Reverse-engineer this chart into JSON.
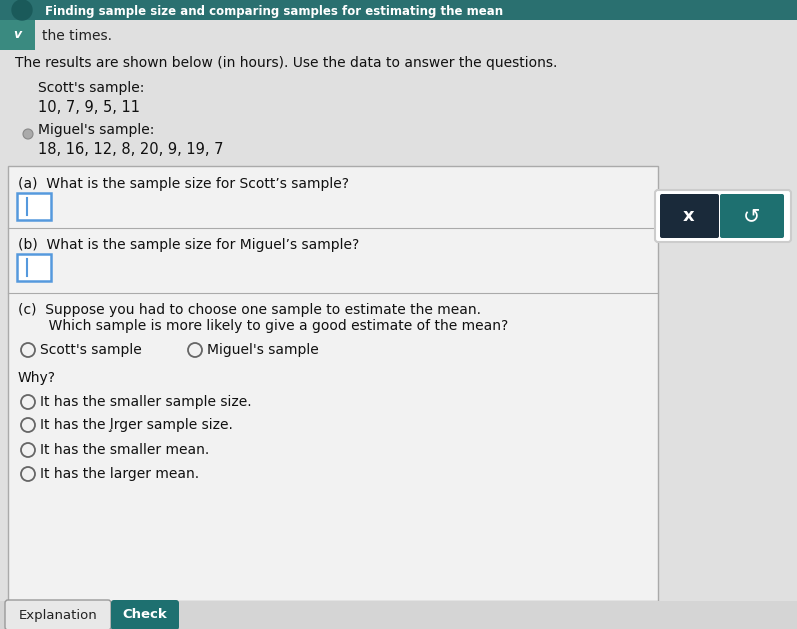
{
  "title": "Finding sample size and comparing samples for estimating the mean",
  "subtitle": "the times.",
  "intro_text": "The results are shown below (in hours). Use the data to answer the questions.",
  "scott_label": "Scott's sample:",
  "scott_data": "10, 7, 9, 5, 11",
  "miguel_label": "Miguel's sample:",
  "miguel_data": "18, 16, 12, 8, 20, 9, 19, 7",
  "q_a": "(a)  What is the sample size for Scott’s sample?",
  "q_b": "(b)  What is the sample size for Miguel’s sample?",
  "q_c_line1": "(c)  Suppose you had to choose one sample to estimate the mean.",
  "q_c_line2": "       Which sample is more likely to give a good estimate of the mean?",
  "radio_scott": "Scott's sample",
  "radio_miguel": "Miguel's sample",
  "why_label": "Why?",
  "why_options": [
    "It has the smaller sample size.",
    "It has the ļrger sample size.",
    "It has the smaller mean.",
    "It has the larger mean."
  ],
  "btn_explanation": "Explanation",
  "btn_check": "Check",
  "x_btn_label": "x",
  "bg_color": "#cccccc",
  "header_bg": "#2a7070",
  "header_text_color": "#ffffff",
  "panel_bg": "#f5f5f5",
  "box_border": "#aaaaaa",
  "input_border": "#5599dd",
  "check_btn_color": "#1e7070",
  "check_btn_text": "#ffffff",
  "x_btn_color": "#1a2a3a",
  "side_btn_container": "#e8e8e8",
  "explain_btn_bg": "#e8e8e8",
  "explain_btn_border": "#999999",
  "teal_chevron_bg": "#3a8a80"
}
